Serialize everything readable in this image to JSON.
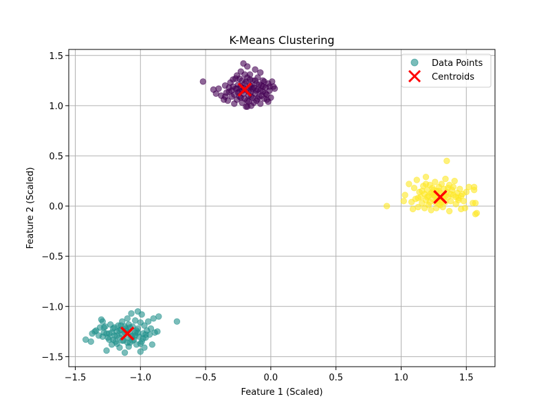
{
  "chart_data": {
    "type": "scatter",
    "title": "K-Means Clustering",
    "xlabel": "Feature 1 (Scaled)",
    "ylabel": "Feature 2 (Scaled)",
    "xlim": [
      -1.55,
      1.72
    ],
    "ylim": [
      -1.6,
      1.56
    ],
    "xticks": [
      -1.5,
      -1.0,
      -0.5,
      0.0,
      0.5,
      1.0,
      1.5
    ],
    "yticks": [
      -1.5,
      -1.0,
      -0.5,
      0.0,
      0.5,
      1.0,
      1.5
    ],
    "xtick_labels": [
      "−1.5",
      "−1.0",
      "−0.5",
      "0.0",
      "0.5",
      "1.0",
      "1.5"
    ],
    "ytick_labels": [
      "−1.5",
      "−1.0",
      "−0.5",
      "0.0",
      "0.5",
      "1.0",
      "1.5"
    ],
    "grid": true,
    "legend_position": "top-right",
    "legend": [
      {
        "label": "Data Points",
        "marker": "circle",
        "color": "#21918c"
      },
      {
        "label": "Centroids",
        "marker": "x",
        "color": "#ff0000"
      }
    ],
    "clusters": [
      {
        "color": "#440154",
        "centroid": [
          -0.2,
          1.16
        ],
        "points": [
          [
            -0.52,
            1.24
          ],
          [
            -0.44,
            1.16
          ],
          [
            -0.42,
            1.12
          ],
          [
            -0.4,
            1.17
          ],
          [
            -0.38,
            1.1
          ],
          [
            -0.36,
            1.06
          ],
          [
            -0.35,
            1.2
          ],
          [
            -0.34,
            1.13
          ],
          [
            -0.33,
            1.05
          ],
          [
            -0.32,
            1.18
          ],
          [
            -0.31,
            1.23
          ],
          [
            -0.3,
            1.09
          ],
          [
            -0.3,
            1.15
          ],
          [
            -0.29,
            1.26
          ],
          [
            -0.28,
            1.02
          ],
          [
            -0.28,
            1.11
          ],
          [
            -0.27,
            1.17
          ],
          [
            -0.26,
            1.3
          ],
          [
            -0.26,
            1.06
          ],
          [
            -0.25,
            1.21
          ],
          [
            -0.24,
            1.14
          ],
          [
            -0.24,
            1.09
          ],
          [
            -0.23,
            1.34
          ],
          [
            -0.23,
            1.19
          ],
          [
            -0.22,
            1.03
          ],
          [
            -0.22,
            1.25
          ],
          [
            -0.21,
            1.42
          ],
          [
            -0.21,
            1.12
          ],
          [
            -0.2,
            1.07
          ],
          [
            -0.2,
            1.22
          ],
          [
            -0.19,
            1.16
          ],
          [
            -0.19,
            0.99
          ],
          [
            -0.18,
            1.39
          ],
          [
            -0.18,
            1.28
          ],
          [
            -0.17,
            1.1
          ],
          [
            -0.17,
            1.04
          ],
          [
            -0.16,
            1.2
          ],
          [
            -0.16,
            1.31
          ],
          [
            -0.15,
            1.14
          ],
          [
            -0.15,
            1.0
          ],
          [
            -0.14,
            1.25
          ],
          [
            -0.14,
            1.08
          ],
          [
            -0.13,
            1.18
          ],
          [
            -0.12,
            1.36
          ],
          [
            -0.12,
            1.12
          ],
          [
            -0.11,
            1.05
          ],
          [
            -0.11,
            1.22
          ],
          [
            -0.1,
            1.28
          ],
          [
            -0.1,
            1.16
          ],
          [
            -0.09,
            1.09
          ],
          [
            -0.08,
            1.33
          ],
          [
            -0.08,
            1.02
          ],
          [
            -0.07,
            1.2
          ],
          [
            -0.06,
            1.14
          ],
          [
            -0.06,
            1.25
          ],
          [
            -0.05,
            1.07
          ],
          [
            -0.04,
            1.18
          ],
          [
            -0.03,
            1.11
          ],
          [
            -0.02,
            1.22
          ],
          [
            -0.02,
            1.04
          ],
          [
            -0.01,
            1.15
          ],
          [
            0.0,
            1.08
          ],
          [
            0.01,
            1.24
          ],
          [
            0.02,
            1.19
          ],
          [
            0.03,
            1.17
          ],
          [
            -0.27,
            1.27
          ],
          [
            -0.25,
            1.13
          ],
          [
            -0.23,
            1.08
          ],
          [
            -0.21,
            1.18
          ],
          [
            -0.19,
            1.24
          ],
          [
            -0.17,
            1.14
          ],
          [
            -0.15,
            1.19
          ],
          [
            -0.13,
            1.03
          ],
          [
            -0.11,
            1.15
          ],
          [
            -0.09,
            1.21
          ],
          [
            -0.07,
            1.1
          ],
          [
            -0.05,
            1.24
          ],
          [
            -0.03,
            1.06
          ],
          [
            -0.01,
            1.19
          ],
          [
            -0.35,
            1.09
          ],
          [
            -0.32,
            1.14
          ],
          [
            -0.29,
            1.19
          ],
          [
            -0.26,
            1.17
          ],
          [
            -0.24,
            1.27
          ],
          [
            -0.22,
            1.15
          ],
          [
            -0.2,
            1.31
          ],
          [
            -0.18,
            1.05
          ],
          [
            -0.16,
            1.26
          ],
          [
            -0.14,
            1.17
          ],
          [
            -0.12,
            1.25
          ],
          [
            -0.1,
            1.07
          ],
          [
            -0.08,
            1.15
          ],
          [
            -0.06,
            1.19
          ],
          [
            -0.04,
            1.12
          ],
          [
            -0.18,
            0.99
          ],
          [
            -0.15,
            1.09
          ]
        ]
      },
      {
        "color": "#21918c",
        "centroid": [
          -1.1,
          -1.27
        ],
        "points": [
          [
            -1.42,
            -1.33
          ],
          [
            -1.38,
            -1.35
          ],
          [
            -1.37,
            -1.27
          ],
          [
            -1.34,
            -1.24
          ],
          [
            -1.32,
            -1.29
          ],
          [
            -1.31,
            -1.21
          ],
          [
            -1.3,
            -1.13
          ],
          [
            -1.29,
            -1.15
          ],
          [
            -1.28,
            -1.26
          ],
          [
            -1.27,
            -1.2
          ],
          [
            -1.26,
            -1.44
          ],
          [
            -1.25,
            -1.31
          ],
          [
            -1.24,
            -1.27
          ],
          [
            -1.23,
            -1.18
          ],
          [
            -1.22,
            -1.38
          ],
          [
            -1.21,
            -1.22
          ],
          [
            -1.2,
            -1.29
          ],
          [
            -1.19,
            -1.35
          ],
          [
            -1.18,
            -1.25
          ],
          [
            -1.17,
            -1.19
          ],
          [
            -1.16,
            -1.31
          ],
          [
            -1.16,
            -1.41
          ],
          [
            -1.15,
            -1.23
          ],
          [
            -1.14,
            -1.15
          ],
          [
            -1.14,
            -1.28
          ],
          [
            -1.13,
            -1.34
          ],
          [
            -1.12,
            -1.2
          ],
          [
            -1.12,
            -1.46
          ],
          [
            -1.11,
            -1.24
          ],
          [
            -1.1,
            -1.12
          ],
          [
            -1.1,
            -1.31
          ],
          [
            -1.09,
            -1.18
          ],
          [
            -1.08,
            -1.36
          ],
          [
            -1.08,
            -1.25
          ],
          [
            -1.07,
            -1.07
          ],
          [
            -1.06,
            -1.29
          ],
          [
            -1.06,
            -1.2
          ],
          [
            -1.05,
            -1.33
          ],
          [
            -1.04,
            -1.14
          ],
          [
            -1.04,
            -1.26
          ],
          [
            -1.03,
            -1.38
          ],
          [
            -1.02,
            -1.05
          ],
          [
            -1.02,
            -1.22
          ],
          [
            -1.01,
            -1.3
          ],
          [
            -1.0,
            -1.16
          ],
          [
            -1.0,
            -1.45
          ],
          [
            -0.99,
            -1.35
          ],
          [
            -0.99,
            -1.08
          ],
          [
            -0.98,
            -1.27
          ],
          [
            -0.97,
            -1.19
          ],
          [
            -0.97,
            -1.41
          ],
          [
            -0.96,
            -1.31
          ],
          [
            -0.95,
            -1.24
          ],
          [
            -0.94,
            -1.15
          ],
          [
            -0.93,
            -1.28
          ],
          [
            -0.92,
            -1.22
          ],
          [
            -0.91,
            -1.38
          ],
          [
            -0.9,
            -1.12
          ],
          [
            -0.89,
            -1.26
          ],
          [
            -0.87,
            -1.25
          ],
          [
            -0.86,
            -1.1
          ],
          [
            -0.72,
            -1.15
          ],
          [
            -1.28,
            -1.21
          ],
          [
            -1.26,
            -1.27
          ],
          [
            -1.24,
            -1.33
          ],
          [
            -1.22,
            -1.26
          ],
          [
            -1.2,
            -1.21
          ],
          [
            -1.18,
            -1.37
          ],
          [
            -1.16,
            -1.24
          ],
          [
            -1.14,
            -1.34
          ],
          [
            -1.12,
            -1.26
          ],
          [
            -1.1,
            -1.36
          ],
          [
            -1.08,
            -1.21
          ],
          [
            -1.06,
            -1.34
          ],
          [
            -1.04,
            -1.29
          ],
          [
            -1.02,
            -1.26
          ],
          [
            -1.0,
            -1.37
          ],
          [
            -0.98,
            -1.32
          ],
          [
            -0.96,
            -1.28
          ],
          [
            -1.15,
            -1.19
          ],
          [
            -1.11,
            -1.22
          ],
          [
            -1.07,
            -1.3
          ],
          [
            -1.03,
            -1.24
          ],
          [
            -1.18,
            -1.29
          ],
          [
            -1.21,
            -1.33
          ],
          [
            -1.35,
            -1.25
          ],
          [
            -1.29,
            -1.3
          ],
          [
            -1.09,
            -1.4
          ]
        ]
      },
      {
        "color": "#fde725",
        "centroid": [
          1.3,
          0.09
        ],
        "points": [
          [
            0.89,
            0.0
          ],
          [
            1.02,
            0.05
          ],
          [
            1.03,
            0.11
          ],
          [
            1.06,
            0.22
          ],
          [
            1.08,
            0.04
          ],
          [
            1.09,
            -0.03
          ],
          [
            1.1,
            0.18
          ],
          [
            1.11,
            0.07
          ],
          [
            1.12,
            0.26
          ],
          [
            1.13,
            -0.01
          ],
          [
            1.14,
            0.14
          ],
          [
            1.15,
            0.09
          ],
          [
            1.16,
            0.03
          ],
          [
            1.17,
            0.2
          ],
          [
            1.18,
            0.12
          ],
          [
            1.18,
            -0.02
          ],
          [
            1.19,
            0.29
          ],
          [
            1.19,
            0.06
          ],
          [
            1.2,
            0.16
          ],
          [
            1.21,
            0.1
          ],
          [
            1.21,
            0.01
          ],
          [
            1.22,
            0.21
          ],
          [
            1.23,
            0.13
          ],
          [
            1.23,
            -0.04
          ],
          [
            1.24,
            0.07
          ],
          [
            1.24,
            0.18
          ],
          [
            1.25,
            0.11
          ],
          [
            1.26,
            0.04
          ],
          [
            1.26,
            0.24
          ],
          [
            1.27,
            0.15
          ],
          [
            1.27,
            -0.02
          ],
          [
            1.28,
            0.09
          ],
          [
            1.29,
            0.19
          ],
          [
            1.29,
            0.02
          ],
          [
            1.3,
            0.13
          ],
          [
            1.31,
            0.06
          ],
          [
            1.31,
            0.22
          ],
          [
            1.32,
            -0.01
          ],
          [
            1.33,
            0.11
          ],
          [
            1.33,
            0.17
          ],
          [
            1.34,
            0.27
          ],
          [
            1.34,
            0.04
          ],
          [
            1.35,
            0.45
          ],
          [
            1.35,
            0.14
          ],
          [
            1.36,
            0.09
          ],
          [
            1.37,
            -0.05
          ],
          [
            1.37,
            0.21
          ],
          [
            1.38,
            0.05
          ],
          [
            1.39,
            0.16
          ],
          [
            1.4,
            0.11
          ],
          [
            1.41,
            0.25
          ],
          [
            1.42,
            0.02
          ],
          [
            1.43,
            0.13
          ],
          [
            1.44,
            0.08
          ],
          [
            1.45,
            0.17
          ],
          [
            1.46,
            -0.03
          ],
          [
            1.47,
            0.12
          ],
          [
            1.48,
            0.05
          ],
          [
            1.49,
            -0.02
          ],
          [
            1.5,
            0.14
          ],
          [
            1.52,
            0.19
          ],
          [
            1.55,
            0.03
          ],
          [
            1.56,
            0.19
          ],
          [
            1.56,
            0.16
          ],
          [
            1.57,
            0.03
          ],
          [
            1.57,
            -0.08
          ],
          [
            1.58,
            -0.07
          ],
          [
            1.4,
            0.19
          ],
          [
            1.2,
            0.09
          ],
          [
            1.25,
            0.16
          ],
          [
            1.28,
            0.06
          ],
          [
            1.32,
            0.08
          ],
          [
            1.36,
            0.18
          ],
          [
            1.22,
            0.04
          ],
          [
            1.3,
            0.01
          ],
          [
            1.38,
            0.12
          ],
          [
            1.24,
            0.13
          ],
          [
            1.34,
            0.1
          ],
          [
            1.16,
            0.15
          ],
          [
            1.44,
            0.06
          ],
          [
            1.29,
            0.15
          ],
          [
            1.42,
            0.09
          ],
          [
            1.26,
            0.1
          ],
          [
            1.19,
            0.22
          ],
          [
            1.46,
            0.1
          ],
          [
            1.13,
            0.08
          ],
          [
            1.31,
            0.04
          ]
        ]
      }
    ]
  }
}
